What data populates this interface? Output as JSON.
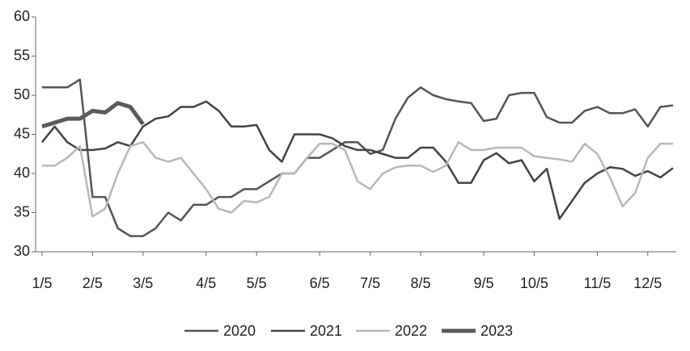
{
  "chart_data": {
    "type": "line",
    "categories": [
      "1/5",
      null,
      null,
      null,
      "2/5",
      null,
      null,
      null,
      "3/5",
      null,
      null,
      null,
      null,
      "4/5",
      null,
      null,
      null,
      "5/5",
      null,
      null,
      null,
      null,
      "6/5",
      null,
      null,
      null,
      "7/5",
      null,
      null,
      null,
      "8/5",
      null,
      null,
      null,
      null,
      "9/5",
      null,
      null,
      null,
      "10/5",
      null,
      null,
      null,
      null,
      "11/5",
      null,
      null,
      null,
      "12/5",
      null,
      null
    ],
    "series": [
      {
        "name": "2020",
        "color": "#555555",
        "width": 2.5,
        "values": [
          51,
          51,
          51,
          52,
          37,
          37,
          33,
          32,
          32,
          33,
          35,
          34,
          36,
          36,
          37,
          37,
          38,
          38,
          39,
          40,
          40,
          42,
          42,
          43,
          44,
          44,
          42.5,
          43,
          47,
          49.7,
          51,
          50,
          49.5,
          49.2,
          49,
          46.7,
          47,
          50,
          50.3,
          50.3,
          47.2,
          46.5,
          46.5,
          48,
          48.5,
          47.7,
          47.7,
          48.2,
          46,
          48.5,
          48.7
        ]
      },
      {
        "name": "2021",
        "color": "#444444",
        "width": 2.5,
        "values": [
          44,
          46,
          44,
          43,
          43,
          43.2,
          44,
          43.5,
          46,
          47,
          47.3,
          48.5,
          48.5,
          49.2,
          48,
          46,
          46,
          46.2,
          43,
          41.5,
          45,
          45,
          45,
          44.5,
          43.5,
          43,
          43,
          42.5,
          42,
          42,
          43.3,
          43.3,
          41.5,
          38.8,
          38.8,
          41.7,
          42.6,
          41.3,
          41.7,
          39,
          40.6,
          34.2,
          36.5,
          38.8,
          40,
          40.8,
          40.6,
          39.7,
          40.3,
          39.5,
          40.7
        ]
      },
      {
        "name": "2022",
        "color": "#b8b8b8",
        "width": 2.5,
        "values": [
          41,
          41,
          42,
          43.5,
          34.5,
          35.5,
          40,
          43.5,
          44,
          42,
          41.5,
          42,
          40,
          38,
          35.5,
          35,
          36.5,
          36.3,
          37,
          40,
          40,
          42,
          43.8,
          43.8,
          43,
          39,
          38,
          40,
          40.8,
          41,
          41,
          40.2,
          41,
          44,
          43,
          43,
          43.3,
          43.3,
          43.3,
          42.2,
          42,
          41.8,
          41.5,
          43.8,
          42.5,
          39.5,
          35.8,
          37.5,
          42,
          43.8,
          43.8
        ]
      },
      {
        "name": "2023",
        "color": "#5a5a5a",
        "width": 5,
        "values": [
          46,
          46.5,
          47,
          47,
          48,
          47.8,
          49,
          48.5,
          46.3,
          null,
          null,
          null,
          null,
          null,
          null,
          null,
          null,
          null,
          null,
          null,
          null,
          null,
          null,
          null,
          null,
          null,
          null,
          null,
          null,
          null,
          null,
          null,
          null,
          null,
          null,
          null,
          null,
          null,
          null,
          null,
          null,
          null,
          null,
          null,
          null,
          null,
          null,
          null,
          null,
          null,
          null
        ]
      }
    ],
    "ylim": [
      30,
      60
    ],
    "yticks": [
      30,
      35,
      40,
      45,
      50,
      55,
      60
    ]
  }
}
